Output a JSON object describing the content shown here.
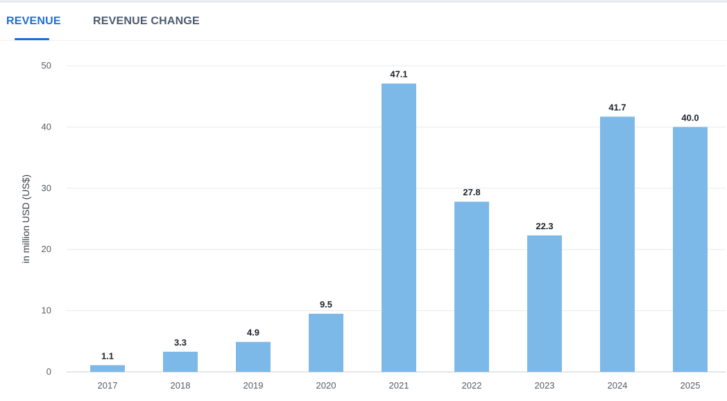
{
  "tabs": {
    "revenue": "REVENUE",
    "revenue_change": "REVENUE CHANGE"
  },
  "colors": {
    "accent": "#1f6fd0",
    "bar": "#7db9e8"
  },
  "chart_data": {
    "type": "bar",
    "categories": [
      "2017",
      "2018",
      "2019",
      "2020",
      "2021",
      "2022",
      "2023",
      "2024",
      "2025"
    ],
    "values": [
      1.1,
      3.3,
      4.9,
      9.5,
      47.1,
      27.8,
      22.3,
      41.7,
      40.0
    ],
    "value_labels": [
      "1.1",
      "3.3",
      "4.9",
      "9.5",
      "47.1",
      "27.8",
      "22.3",
      "41.7",
      "40.0"
    ],
    "ylabel": "in million USD (US$)",
    "ylim": [
      0,
      50
    ],
    "yticks": [
      "0",
      "10",
      "20",
      "30",
      "40",
      "50"
    ],
    "grid": true
  }
}
